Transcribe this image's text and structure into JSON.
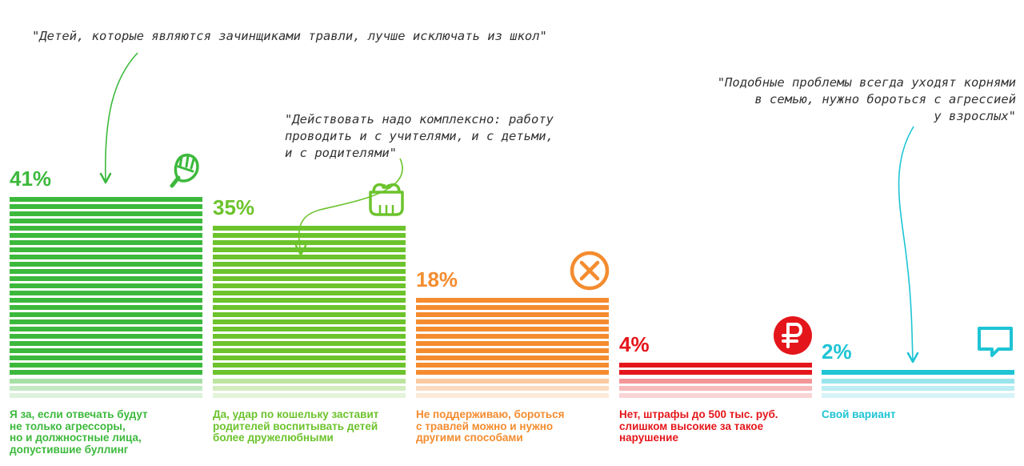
{
  "chart_data": {
    "type": "bar",
    "categories": [
      "Я за, если отвечать будут не только агрессоры, но и должностные лица, допустившие буллинг",
      "Да, удар по кошельку заставит родителей воспитывать детей более дружелюбными",
      "Не поддерживаю, бороться с травлей можно и нужно другими способами",
      "Нет, штрафы до 500 тыс. руб. слишком высокие за такое нарушение",
      "Свой вариант"
    ],
    "category_lines": [
      [
        "Я за, если отвечать будут",
        "не только агрессоры,",
        "но и должностные лица,",
        "допустившие буллинг"
      ],
      [
        "Да, удар по кошельку заставит",
        "родителей воспитывать детей",
        "более дружелюбными"
      ],
      [
        "Не поддерживаю, бороться",
        "с травлей можно и нужно",
        "другими способами"
      ],
      [
        "Нет, штрафы до 500 тыс. руб.",
        "слишком высокие за такое",
        "нарушение"
      ],
      [
        "Свой вариант"
      ]
    ],
    "values": [
      41,
      35,
      18,
      4,
      2
    ],
    "value_labels": [
      "41%",
      "35%",
      "18%",
      "4%",
      "2%"
    ],
    "colors": [
      "#3cb93c",
      "#6cc32c",
      "#f48c2f",
      "#e4161b",
      "#1ec4d4"
    ],
    "icons": [
      "fist-icon",
      "wallet-icon",
      "cross-circle-icon",
      "ruble-icon",
      "speech-bubble-icon"
    ],
    "annotations": [
      "\"Детей, которые являются зачинщиками травли, лучше исключать из школ\"",
      "\"Действовать надо комплексно: работу\nпроводить и с учителями, и с детьми,\nи с родителями\"",
      "\"Подобные проблемы всегда уходят корнями\nв семью, нужно бороться с агрессией\nу взрослых\""
    ]
  }
}
